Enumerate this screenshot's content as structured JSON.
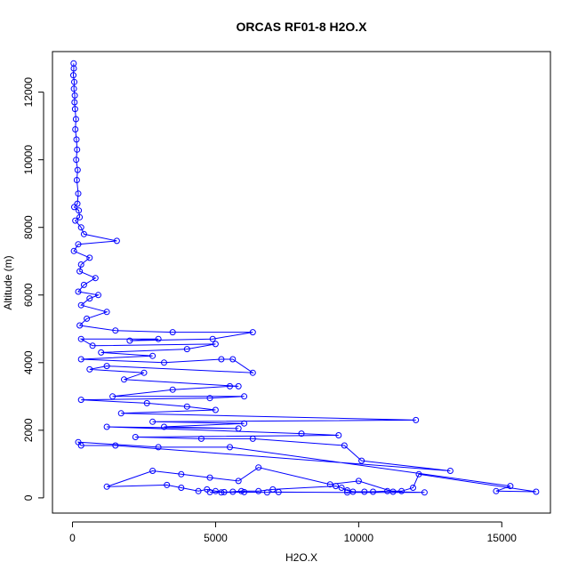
{
  "chart_data": {
    "type": "scatter",
    "title": "ORCAS RF01-8 H2O.X",
    "xlabel": "H2O.X",
    "ylabel": "Altitude (m)",
    "xlim": [
      -700,
      16700
    ],
    "ylim": [
      -450,
      13200
    ],
    "x_ticks": [
      0,
      5000,
      10000,
      15000
    ],
    "y_ticks": [
      0,
      2000,
      4000,
      6000,
      8000,
      10000,
      12000
    ],
    "grid": false,
    "legend": "none",
    "colors": {
      "series": "#0000ff",
      "axis": "#000000"
    },
    "series": [
      {
        "marker": "open-circle",
        "connect": true,
        "points": [
          [
            40,
            12850
          ],
          [
            45,
            12700
          ],
          [
            30,
            12500
          ],
          [
            60,
            12300
          ],
          [
            50,
            12100
          ],
          [
            80,
            11900
          ],
          [
            70,
            11700
          ],
          [
            90,
            11500
          ],
          [
            120,
            11200
          ],
          [
            100,
            10900
          ],
          [
            140,
            10600
          ],
          [
            160,
            10300
          ],
          [
            130,
            10000
          ],
          [
            180,
            9700
          ],
          [
            150,
            9400
          ],
          [
            200,
            9000
          ],
          [
            170,
            8700
          ],
          [
            60,
            8600
          ],
          [
            220,
            8500
          ],
          [
            250,
            8300
          ],
          [
            100,
            8200
          ],
          [
            300,
            8000
          ],
          [
            400,
            7800
          ],
          [
            1550,
            7600
          ],
          [
            200,
            7500
          ],
          [
            50,
            7300
          ],
          [
            600,
            7100
          ],
          [
            300,
            6900
          ],
          [
            250,
            6700
          ],
          [
            800,
            6500
          ],
          [
            400,
            6300
          ],
          [
            200,
            6100
          ],
          [
            900,
            6000
          ],
          [
            600,
            5900
          ],
          [
            300,
            5700
          ],
          [
            1200,
            5500
          ],
          [
            500,
            5300
          ],
          [
            250,
            5100
          ],
          [
            1500,
            4950
          ],
          [
            3500,
            4900
          ],
          [
            6300,
            4900
          ],
          [
            4900,
            4700
          ],
          [
            2000,
            4650
          ],
          [
            3000,
            4700
          ],
          [
            300,
            4700
          ],
          [
            700,
            4500
          ],
          [
            5000,
            4550
          ],
          [
            4000,
            4400
          ],
          [
            1000,
            4300
          ],
          [
            2800,
            4200
          ],
          [
            300,
            4100
          ],
          [
            3200,
            4000
          ],
          [
            5200,
            4100
          ],
          [
            5600,
            4100
          ],
          [
            6300,
            3700
          ],
          [
            1200,
            3900
          ],
          [
            600,
            3800
          ],
          [
            2500,
            3700
          ],
          [
            1800,
            3500
          ],
          [
            5800,
            3300
          ],
          [
            5500,
            3300
          ],
          [
            3500,
            3200
          ],
          [
            1400,
            3000
          ],
          [
            6000,
            3000
          ],
          [
            4800,
            2950
          ],
          [
            300,
            2900
          ],
          [
            2600,
            2800
          ],
          [
            4000,
            2700
          ],
          [
            5000,
            2600
          ],
          [
            1700,
            2500
          ],
          [
            12000,
            2300
          ],
          [
            2800,
            2250
          ],
          [
            6000,
            2200
          ],
          [
            3200,
            2100
          ],
          [
            5800,
            2050
          ],
          [
            1200,
            2100
          ],
          [
            8000,
            1900
          ],
          [
            9300,
            1850
          ],
          [
            2200,
            1800
          ],
          [
            4500,
            1750
          ],
          [
            6300,
            1750
          ],
          [
            9500,
            1550
          ],
          [
            10100,
            1100
          ],
          [
            13200,
            800
          ],
          [
            1500,
            1550
          ],
          [
            300,
            1550
          ],
          [
            200,
            1650
          ],
          [
            3000,
            1500
          ],
          [
            5500,
            1500
          ],
          [
            15300,
            350
          ],
          [
            14800,
            200
          ],
          [
            16200,
            180
          ],
          [
            12100,
            700
          ],
          [
            11900,
            300
          ],
          [
            11500,
            200
          ],
          [
            11000,
            200
          ],
          [
            10500,
            180
          ],
          [
            10200,
            180
          ],
          [
            9800,
            180
          ],
          [
            9600,
            220
          ],
          [
            9400,
            300
          ],
          [
            9200,
            350
          ],
          [
            7000,
            250
          ],
          [
            6500,
            200
          ],
          [
            5900,
            200
          ],
          [
            5600,
            180
          ],
          [
            5300,
            170
          ],
          [
            5000,
            200
          ],
          [
            4700,
            250
          ],
          [
            4400,
            200
          ],
          [
            3800,
            300
          ],
          [
            3300,
            380
          ],
          [
            1200,
            330
          ],
          [
            2800,
            800
          ],
          [
            3800,
            700
          ],
          [
            4800,
            600
          ],
          [
            5800,
            500
          ],
          [
            6500,
            900
          ],
          [
            9000,
            400
          ],
          [
            10000,
            500
          ],
          [
            11200,
            180
          ],
          [
            12300,
            160
          ],
          [
            9600,
            160
          ],
          [
            7200,
            170
          ],
          [
            6800,
            160
          ],
          [
            6000,
            170
          ],
          [
            5200,
            160
          ],
          [
            4800,
            170
          ]
        ]
      }
    ]
  }
}
